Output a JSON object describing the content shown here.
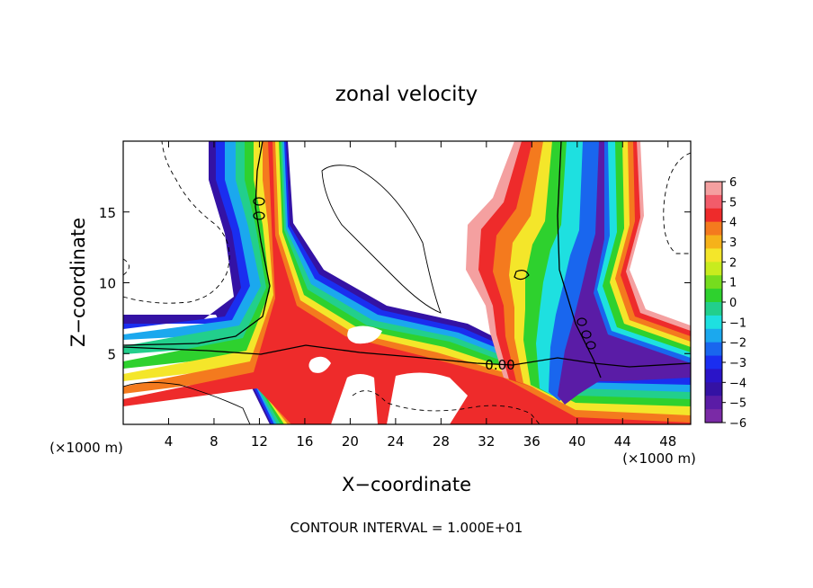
{
  "chart_data": {
    "type": "heatmap",
    "title": "zonal velocity",
    "xlabel": "X−coordinate",
    "ylabel": "Z−coordinate",
    "x_unit_left": "(×1000 m)",
    "x_unit_right": "(×1000 m)",
    "footer": "CONTOUR INTERVAL = 1.000E+01",
    "contour_label": "0.00",
    "xlim": [
      0,
      50
    ],
    "ylim": [
      0,
      20
    ],
    "x_ticks": [
      4,
      8,
      12,
      16,
      20,
      24,
      28,
      32,
      36,
      40,
      44,
      48
    ],
    "x_tick_labels": [
      "4",
      "8",
      "12",
      "16",
      "20",
      "24",
      "28",
      "32",
      "36",
      "40",
      "44",
      "48"
    ],
    "y_ticks": [
      5,
      10,
      15
    ],
    "y_tick_labels": [
      "5",
      "10",
      "15"
    ],
    "colorbar": {
      "range": [
        -6,
        6
      ],
      "labels": [
        "6",
        "5",
        "4",
        "3",
        "2",
        "1",
        "0",
        "−1",
        "−2",
        "−3",
        "−4",
        "−5",
        "−6"
      ],
      "colors": [
        "#f4a0a0",
        "#f25c6a",
        "#ee2b2b",
        "#f47a1e",
        "#f6b21a",
        "#f4e62a",
        "#c8ec1e",
        "#76dc1e",
        "#2ed12e",
        "#22cf8c",
        "#1ee0e0",
        "#1ba8ee",
        "#1966ee",
        "#1a2ef0",
        "#2a14c8",
        "#3412a4",
        "#5a1ca6",
        "#7a2aa6"
      ]
    },
    "shading_note": "white regions are values outside the colour range",
    "zero_contour": "solid black line at 0.00"
  }
}
